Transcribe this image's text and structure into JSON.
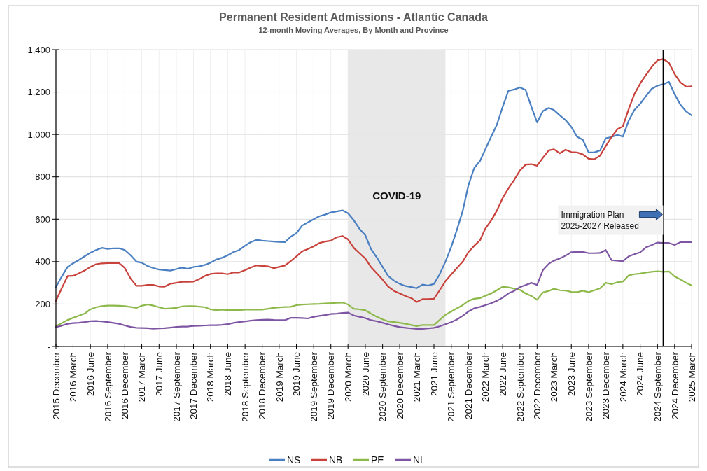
{
  "chart_data": {
    "type": "line",
    "title": "Permanent Resident Admissions - Atlantic Canada",
    "subtitle": "12-month Moving Averages, By Month and Province",
    "x": [
      "2015-12",
      "2016-01",
      "2016-02",
      "2016-03",
      "2016-04",
      "2016-05",
      "2016-06",
      "2016-07",
      "2016-08",
      "2016-09",
      "2016-10",
      "2016-11",
      "2016-12",
      "2017-01",
      "2017-02",
      "2017-03",
      "2017-04",
      "2017-05",
      "2017-06",
      "2017-07",
      "2017-08",
      "2017-09",
      "2017-10",
      "2017-11",
      "2017-12",
      "2018-01",
      "2018-02",
      "2018-03",
      "2018-04",
      "2018-05",
      "2018-06",
      "2018-07",
      "2018-08",
      "2018-09",
      "2018-10",
      "2018-11",
      "2018-12",
      "2019-01",
      "2019-02",
      "2019-03",
      "2019-04",
      "2019-05",
      "2019-06",
      "2019-07",
      "2019-08",
      "2019-09",
      "2019-10",
      "2019-11",
      "2019-12",
      "2020-01",
      "2020-02",
      "2020-03",
      "2020-04",
      "2020-05",
      "2020-06",
      "2020-07",
      "2020-08",
      "2020-09",
      "2020-10",
      "2020-11",
      "2020-12",
      "2021-01",
      "2021-02",
      "2021-03",
      "2021-04",
      "2021-05",
      "2021-06",
      "2021-07",
      "2021-08",
      "2021-09",
      "2021-10",
      "2021-11",
      "2021-12",
      "2022-01",
      "2022-02",
      "2022-03",
      "2022-04",
      "2022-05",
      "2022-06",
      "2022-07",
      "2022-08",
      "2022-09",
      "2022-10",
      "2022-11",
      "2022-12",
      "2023-01",
      "2023-02",
      "2023-03",
      "2023-04",
      "2023-05",
      "2023-06",
      "2023-07",
      "2023-08",
      "2023-09",
      "2023-10",
      "2023-11",
      "2023-12",
      "2024-01",
      "2024-02",
      "2024-03",
      "2024-04",
      "2024-05",
      "2024-06",
      "2024-07",
      "2024-08",
      "2024-09",
      "2024-10",
      "2024-11",
      "2024-12",
      "2025-01",
      "2025-02",
      "2025-03"
    ],
    "xlim": [
      "2015-12",
      "2025-03"
    ],
    "xticks": [
      {
        "value": "2015-12",
        "label": "2015 December"
      },
      {
        "value": "2016-03",
        "label": "2016 March"
      },
      {
        "value": "2016-06",
        "label": "2016 June"
      },
      {
        "value": "2016-09",
        "label": "2016 September"
      },
      {
        "value": "2016-12",
        "label": "2016 December"
      },
      {
        "value": "2017-03",
        "label": "2017 March"
      },
      {
        "value": "2017-06",
        "label": "2017 June"
      },
      {
        "value": "2017-09",
        "label": "2017 September"
      },
      {
        "value": "2017-12",
        "label": "2017 December"
      },
      {
        "value": "2018-03",
        "label": "2018 March"
      },
      {
        "value": "2018-06",
        "label": "2018 June"
      },
      {
        "value": "2018-09",
        "label": "2018 September"
      },
      {
        "value": "2018-12",
        "label": "2018 December"
      },
      {
        "value": "2019-03",
        "label": "2019 March"
      },
      {
        "value": "2019-06",
        "label": "2019 June"
      },
      {
        "value": "2019-09",
        "label": "2019 September"
      },
      {
        "value": "2019-12",
        "label": "2019 December"
      },
      {
        "value": "2020-03",
        "label": "2020 March"
      },
      {
        "value": "2020-06",
        "label": "2020 June"
      },
      {
        "value": "2020-09",
        "label": "2020 September"
      },
      {
        "value": "2020-12",
        "label": "2020 December"
      },
      {
        "value": "2021-03",
        "label": "2021 March"
      },
      {
        "value": "2021-06",
        "label": "2021 June"
      },
      {
        "value": "2021-09",
        "label": "2021 September"
      },
      {
        "value": "2021-12",
        "label": "2021 December"
      },
      {
        "value": "2022-03",
        "label": "2022 March"
      },
      {
        "value": "2022-06",
        "label": "2022 June"
      },
      {
        "value": "2022-09",
        "label": "2022 September"
      },
      {
        "value": "2022-12",
        "label": "2022 December"
      },
      {
        "value": "2023-03",
        "label": "2023 March"
      },
      {
        "value": "2023-06",
        "label": "2023 June"
      },
      {
        "value": "2023-09",
        "label": "2023 September"
      },
      {
        "value": "2023-12",
        "label": "2023 December"
      },
      {
        "value": "2024-03",
        "label": "2024 March"
      },
      {
        "value": "2024-06",
        "label": "2024 June"
      },
      {
        "value": "2024-09",
        "label": "2024 September"
      },
      {
        "value": "2024-12",
        "label": "2024 December"
      },
      {
        "value": "2025-03",
        "label": "2025 March"
      }
    ],
    "ylim": [
      0,
      1400
    ],
    "yticks": [
      {
        "value": 0,
        "label": "-"
      },
      200,
      400,
      600,
      800,
      {
        "value": 1000,
        "label": "1,000"
      },
      {
        "value": 1200,
        "label": "1,200"
      },
      {
        "value": 1400,
        "label": "1,400"
      }
    ],
    "grid": true,
    "legend": "bottom",
    "bands": [
      {
        "axis": "x",
        "from": "2020-03",
        "to": "2021-08",
        "label": "COVID-19",
        "color": "#e6e6e6"
      }
    ],
    "ref_lines": [
      {
        "axis": "x",
        "value": "2024-10",
        "label": "Immigration Plan\n2025-2027 Released",
        "color": "#000000"
      }
    ],
    "series": [
      {
        "name": "NS",
        "color": "#4a7fc1",
        "values": [
          280,
          330,
          375,
          392,
          408,
          425,
          442,
          455,
          465,
          460,
          463,
          463,
          455,
          430,
          400,
          395,
          380,
          370,
          363,
          360,
          358,
          365,
          372,
          366,
          375,
          378,
          385,
          395,
          410,
          418,
          430,
          445,
          455,
          475,
          492,
          503,
          499,
          497,
          495,
          493,
          492,
          517,
          534,
          570,
          585,
          600,
          614,
          622,
          632,
          637,
          642,
          628,
          595,
          555,
          525,
          460,
          420,
          375,
          332,
          310,
          295,
          285,
          280,
          275,
          292,
          287,
          295,
          340,
          400,
          470,
          550,
          640,
          760,
          842,
          875,
          930,
          990,
          1045,
          1130,
          1205,
          1212,
          1222,
          1210,
          1130,
          1057,
          1110,
          1125,
          1115,
          1090,
          1068,
          1035,
          990,
          975,
          915,
          915,
          925,
          982,
          988,
          998,
          990,
          1065,
          1115,
          1145,
          1180,
          1215,
          1230,
          1237,
          1248,
          1190,
          1140,
          1108,
          1090
        ]
      },
      {
        "name": "NB",
        "color": "#c8413b",
        "values": [
          215,
          275,
          332,
          333,
          345,
          358,
          375,
          388,
          392,
          393,
          393,
          393,
          370,
          320,
          286,
          286,
          290,
          290,
          283,
          282,
          296,
          300,
          305,
          305,
          306,
          318,
          333,
          342,
          345,
          345,
          341,
          349,
          349,
          360,
          372,
          382,
          380,
          378,
          369,
          375,
          382,
          402,
          425,
          448,
          460,
          472,
          488,
          495,
          499,
          515,
          521,
          505,
          465,
          440,
          415,
          375,
          345,
          315,
          282,
          262,
          250,
          238,
          228,
          210,
          223,
          223,
          225,
          265,
          308,
          340,
          370,
          400,
          445,
          475,
          501,
          556,
          594,
          640,
          700,
          745,
          785,
          830,
          858,
          860,
          852,
          890,
          925,
          930,
          911,
          928,
          917,
          915,
          906,
          885,
          883,
          900,
          945,
          988,
          1025,
          1038,
          1120,
          1190,
          1240,
          1280,
          1318,
          1350,
          1356,
          1338,
          1285,
          1245,
          1225,
          1227
        ]
      },
      {
        "name": "PE",
        "color": "#8db94a",
        "values": [
          96,
          110,
          125,
          135,
          145,
          155,
          175,
          185,
          190,
          193,
          193,
          192,
          190,
          186,
          182,
          192,
          198,
          193,
          185,
          178,
          180,
          182,
          189,
          190,
          190,
          188,
          185,
          175,
          171,
          174,
          171,
          171,
          171,
          174,
          174,
          174,
          174,
          178,
          182,
          184,
          186,
          187,
          195,
          198,
          199,
          200,
          201,
          203,
          204,
          206,
          207,
          198,
          178,
          175,
          171,
          155,
          140,
          128,
          118,
          115,
          112,
          107,
          101,
          96,
          101,
          101,
          101,
          125,
          149,
          165,
          180,
          195,
          215,
          225,
          228,
          239,
          250,
          265,
          282,
          279,
          273,
          267,
          250,
          238,
          220,
          255,
          262,
          272,
          265,
          264,
          257,
          256,
          263,
          256,
          265,
          274,
          300,
          294,
          303,
          306,
          335,
          341,
          344,
          349,
          352,
          355,
          352,
          354,
          330,
          316,
          300,
          288
        ]
      },
      {
        "name": "NL",
        "color": "#7e55a3",
        "values": [
          91,
          98,
          107,
          110,
          112,
          115,
          119,
          120,
          118,
          115,
          111,
          107,
          99,
          92,
          88,
          87,
          86,
          84,
          85,
          86,
          89,
          92,
          94,
          94,
          97,
          98,
          99,
          100,
          100,
          102,
          105,
          111,
          115,
          118,
          122,
          124,
          126,
          127,
          125,
          124,
          124,
          135,
          135,
          134,
          132,
          140,
          144,
          148,
          153,
          155,
          158,
          160,
          146,
          140,
          134,
          124,
          119,
          112,
          104,
          97,
          91,
          88,
          85,
          83,
          83,
          85,
          88,
          95,
          105,
          115,
          127,
          145,
          165,
          180,
          187,
          195,
          204,
          215,
          230,
          250,
          262,
          280,
          290,
          300,
          290,
          360,
          390,
          405,
          415,
          428,
          445,
          446,
          446,
          440,
          440,
          441,
          455,
          407,
          405,
          402,
          425,
          435,
          444,
          467,
          478,
          490,
          488,
          488,
          479,
          492,
          492,
          492
        ]
      }
    ]
  }
}
